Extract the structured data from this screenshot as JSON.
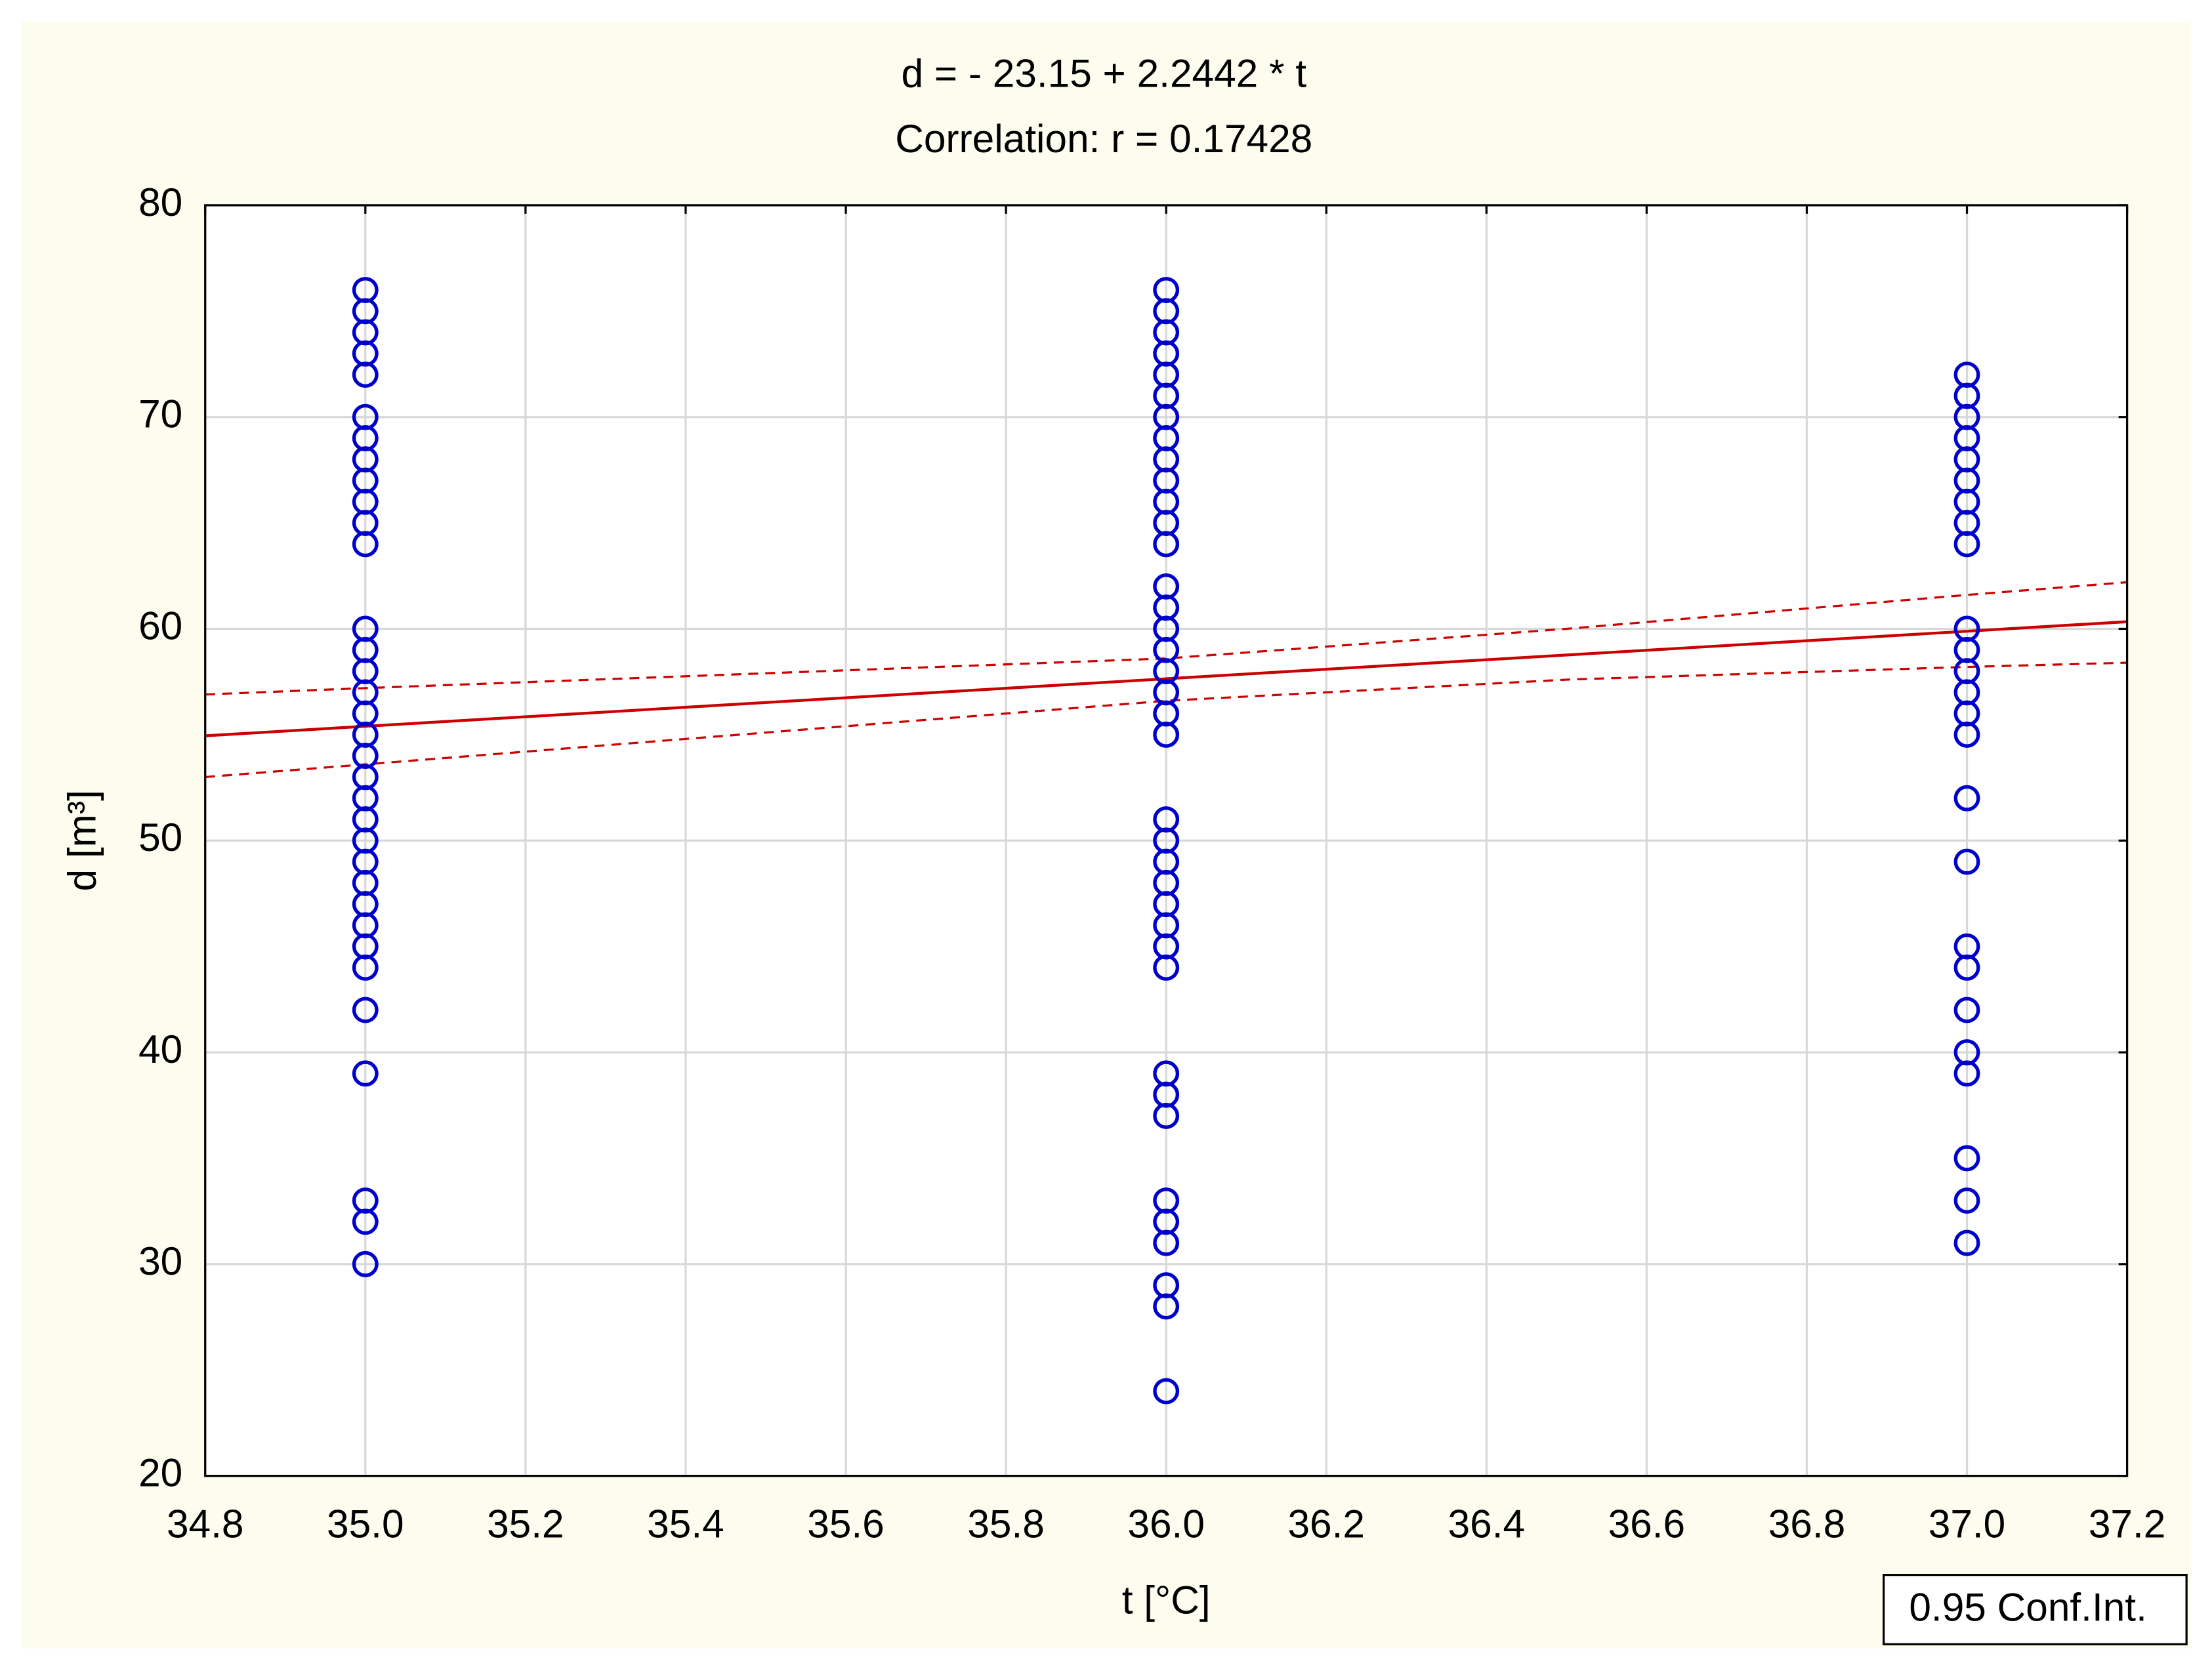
{
  "chart_data": {
    "type": "scatter",
    "title": "d = - 23.15 + 2.2442 * t",
    "subtitle": "Correlation: r = 0.17428",
    "x_label": "t [°C]",
    "y_label": "d [m³]",
    "series": [
      {
        "color": "#0000cc",
        "x": [
          35,
          35,
          35,
          35,
          35,
          35,
          35,
          35,
          35,
          35,
          35,
          35,
          35,
          35,
          35,
          35,
          35,
          35,
          35,
          35,
          35,
          35,
          35,
          35,
          35,
          35,
          35,
          35,
          35,
          35,
          35,
          35,
          35,
          35,
          36,
          36,
          36,
          36,
          36,
          36,
          36,
          36,
          36,
          36,
          36,
          36,
          36,
          36,
          36,
          36,
          36,
          36,
          36,
          36,
          36,
          36,
          36,
          36,
          36,
          36,
          36,
          36,
          36,
          36,
          36,
          36,
          36,
          36,
          36,
          36,
          36,
          36,
          37,
          37,
          37,
          37,
          37,
          37,
          37,
          37,
          37,
          37,
          37,
          37,
          37,
          37,
          37,
          37,
          37,
          37,
          37,
          37,
          37,
          37,
          37,
          37,
          37
        ],
        "values": [
          76,
          75,
          74,
          73,
          72,
          70,
          69,
          68,
          67,
          66,
          65,
          64,
          60,
          59,
          58,
          57,
          56,
          55,
          54,
          53,
          52,
          51,
          50,
          49,
          48,
          47,
          46,
          45,
          44,
          42,
          39,
          33,
          32,
          30,
          76,
          75,
          74,
          73,
          72,
          71,
          70,
          69,
          68,
          67,
          66,
          65,
          64,
          62,
          61,
          60,
          59,
          58,
          57,
          56,
          55,
          51,
          50,
          49,
          48,
          47,
          46,
          45,
          44,
          39,
          38,
          37,
          33,
          32,
          31,
          29,
          28,
          24,
          72,
          71,
          70,
          69,
          68,
          67,
          66,
          65,
          64,
          60,
          59,
          58,
          57,
          56,
          55,
          52,
          49,
          45,
          44,
          42,
          40,
          39,
          35,
          33,
          31
        ]
      }
    ],
    "fit": {
      "intercept": -23.15,
      "slope": 2.2442,
      "color": "#cc0000"
    },
    "ci": {
      "label": "0.95 Conf.Int.",
      "color": "#cc0000",
      "x": [
        34.8,
        35.0,
        35.5,
        36.0,
        36.5,
        37.0,
        37.2
      ],
      "upper": [
        56.9,
        57.2,
        57.9,
        58.6,
        60.0,
        61.6,
        62.2
      ],
      "lower": [
        53.0,
        53.6,
        55.1,
        56.6,
        57.6,
        58.2,
        58.4
      ]
    },
    "xlim": [
      34.8,
      37.2
    ],
    "xticks": [
      34.8,
      {
        "value": 35,
        "label": "35.0"
      },
      35.2,
      35.4,
      35.6,
      35.8,
      {
        "value": 36,
        "label": "36.0"
      },
      36.2,
      36.4,
      36.6,
      36.8,
      {
        "value": 37,
        "label": "37.0"
      },
      37.2
    ],
    "ylim": [
      20,
      80
    ],
    "yticks": [
      20,
      30,
      40,
      50,
      60,
      70,
      80
    ],
    "grid": true
  }
}
